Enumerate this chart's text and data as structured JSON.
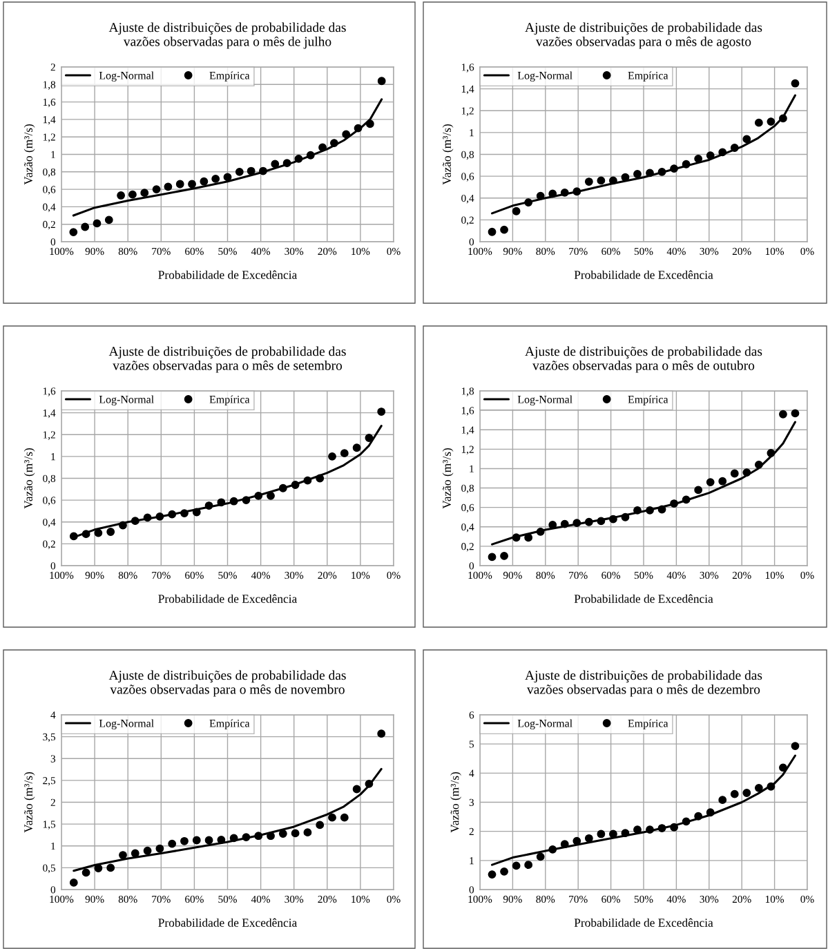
{
  "chart_data": [
    {
      "type": "scatter",
      "title": "Ajuste de distribuições de probabilidade das\nvazões observadas para o mês de julho",
      "xlabel": "Probabilidade de Excedência",
      "ylabel": "Vazão (m³/s)",
      "xlim": [
        100,
        0
      ],
      "xticks": [
        {
          "value": 100,
          "label": "100%"
        },
        {
          "value": 90,
          "label": "90%"
        },
        {
          "value": 80,
          "label": "80%"
        },
        {
          "value": 70,
          "label": "70%"
        },
        {
          "value": 60,
          "label": "60%"
        },
        {
          "value": 50,
          "label": "50%"
        },
        {
          "value": 40,
          "label": "40%"
        },
        {
          "value": 30,
          "label": "30%"
        },
        {
          "value": 20,
          "label": "20%"
        },
        {
          "value": 10,
          "label": "10%"
        },
        {
          "value": 0,
          "label": "0%"
        }
      ],
      "ylim": [
        0,
        2
      ],
      "yticks": [
        0,
        {
          "value": 0.2,
          "label": "0,2"
        },
        {
          "value": 0.4,
          "label": "0,4"
        },
        {
          "value": 0.6,
          "label": "0,6"
        },
        {
          "value": 0.8,
          "label": "0,8"
        },
        1,
        {
          "value": 1.2,
          "label": "1,2"
        },
        {
          "value": 1.4,
          "label": "1,4"
        },
        {
          "value": 1.6,
          "label": "1,6"
        },
        {
          "value": 1.8,
          "label": "1,8"
        },
        2
      ],
      "grid": true,
      "legend": "top left",
      "series": [
        {
          "name": "Log-Normal",
          "type": "line",
          "color": "#000000",
          "line_style": "solid",
          "x": [
            96.4,
            90,
            80,
            70,
            60,
            50,
            40,
            30,
            20,
            15,
            10,
            7.1,
            3.6
          ],
          "values": [
            0.3,
            0.39,
            0.47,
            0.54,
            0.61,
            0.69,
            0.79,
            0.91,
            1.06,
            1.16,
            1.3,
            1.4,
            1.63
          ]
        },
        {
          "name": "Empírica",
          "type": "scatter",
          "color": "#000000",
          "marker": "circle",
          "x": [
            96.4,
            92.9,
            89.3,
            85.7,
            82.1,
            78.6,
            75.0,
            71.4,
            67.9,
            64.3,
            60.7,
            57.1,
            53.6,
            50.0,
            46.4,
            42.9,
            39.3,
            35.7,
            32.1,
            28.6,
            25.0,
            21.4,
            17.9,
            14.3,
            10.7,
            7.1,
            3.6
          ],
          "values": [
            0.11,
            0.17,
            0.21,
            0.25,
            0.53,
            0.54,
            0.56,
            0.6,
            0.63,
            0.66,
            0.66,
            0.69,
            0.72,
            0.74,
            0.8,
            0.81,
            0.81,
            0.89,
            0.9,
            0.95,
            0.99,
            1.08,
            1.13,
            1.23,
            1.3,
            1.35,
            1.84
          ]
        }
      ]
    },
    {
      "type": "scatter",
      "title": "Ajuste de distribuições de probabilidade das\nvazões observadas para o mês de agosto",
      "xlabel": "Probabilidade de Excedência",
      "ylabel": "Vazão (m³/s)",
      "xlim": [
        100,
        0
      ],
      "xticks": [
        {
          "value": 100,
          "label": "100%"
        },
        {
          "value": 90,
          "label": "90%"
        },
        {
          "value": 80,
          "label": "80%"
        },
        {
          "value": 70,
          "label": "70%"
        },
        {
          "value": 60,
          "label": "60%"
        },
        {
          "value": 50,
          "label": "50%"
        },
        {
          "value": 40,
          "label": "40%"
        },
        {
          "value": 30,
          "label": "30%"
        },
        {
          "value": 20,
          "label": "20%"
        },
        {
          "value": 10,
          "label": "10%"
        },
        {
          "value": 0,
          "label": "0%"
        }
      ],
      "ylim": [
        0,
        1.6
      ],
      "yticks": [
        0,
        {
          "value": 0.2,
          "label": "0,2"
        },
        {
          "value": 0.4,
          "label": "0,4"
        },
        {
          "value": 0.6,
          "label": "0,6"
        },
        {
          "value": 0.8,
          "label": "0,8"
        },
        1,
        {
          "value": 1.2,
          "label": "1,2"
        },
        {
          "value": 1.4,
          "label": "1,4"
        },
        {
          "value": 1.6,
          "label": "1,6"
        }
      ],
      "grid": true,
      "legend": "top left",
      "series": [
        {
          "name": "Log-Normal",
          "type": "line",
          "color": "#000000",
          "line_style": "solid",
          "x": [
            96.3,
            90,
            80,
            70,
            60,
            50,
            40,
            30,
            20,
            15,
            10,
            7.4,
            3.7
          ],
          "values": [
            0.26,
            0.33,
            0.4,
            0.46,
            0.53,
            0.59,
            0.67,
            0.75,
            0.87,
            0.95,
            1.06,
            1.14,
            1.34
          ]
        },
        {
          "name": "Empírica",
          "type": "scatter",
          "color": "#000000",
          "marker": "circle",
          "x": [
            96.3,
            92.6,
            88.9,
            85.2,
            81.5,
            77.8,
            74.1,
            70.4,
            66.7,
            63.0,
            59.3,
            55.6,
            51.9,
            48.1,
            44.4,
            40.7,
            37.0,
            33.3,
            29.6,
            25.9,
            22.2,
            18.5,
            14.8,
            11.1,
            7.4,
            3.7
          ],
          "values": [
            0.09,
            0.11,
            0.28,
            0.36,
            0.42,
            0.44,
            0.45,
            0.46,
            0.55,
            0.56,
            0.56,
            0.59,
            0.62,
            0.63,
            0.64,
            0.67,
            0.71,
            0.76,
            0.79,
            0.82,
            0.86,
            0.94,
            1.09,
            1.1,
            1.13,
            1.45
          ]
        }
      ]
    },
    {
      "type": "scatter",
      "title": "Ajuste de distribuições de probabilidade das\nvazões observadas para o mês de setembro",
      "xlabel": "Probabilidade de Excedência",
      "ylabel": "Vazão (m³/s)",
      "xlim": [
        100,
        0
      ],
      "xticks": [
        {
          "value": 100,
          "label": "100%"
        },
        {
          "value": 90,
          "label": "90%"
        },
        {
          "value": 80,
          "label": "80%"
        },
        {
          "value": 70,
          "label": "70%"
        },
        {
          "value": 60,
          "label": "60%"
        },
        {
          "value": 50,
          "label": "50%"
        },
        {
          "value": 40,
          "label": "40%"
        },
        {
          "value": 30,
          "label": "30%"
        },
        {
          "value": 20,
          "label": "20%"
        },
        {
          "value": 10,
          "label": "10%"
        },
        {
          "value": 0,
          "label": "0%"
        }
      ],
      "ylim": [
        0,
        1.6
      ],
      "yticks": [
        0,
        {
          "value": 0.2,
          "label": "0,2"
        },
        {
          "value": 0.4,
          "label": "0,4"
        },
        {
          "value": 0.6,
          "label": "0,6"
        },
        {
          "value": 0.8,
          "label": "0,8"
        },
        1,
        {
          "value": 1.2,
          "label": "1,2"
        },
        {
          "value": 1.4,
          "label": "1,4"
        },
        {
          "value": 1.6,
          "label": "1,6"
        }
      ],
      "grid": true,
      "legend": "top left",
      "series": [
        {
          "name": "Log-Normal",
          "type": "line",
          "color": "#000000",
          "line_style": "solid",
          "x": [
            96.3,
            90,
            80,
            70,
            60,
            50,
            40,
            30,
            20,
            15,
            10,
            7.4,
            3.7
          ],
          "values": [
            0.26,
            0.33,
            0.4,
            0.45,
            0.51,
            0.57,
            0.65,
            0.74,
            0.85,
            0.92,
            1.02,
            1.1,
            1.28
          ]
        },
        {
          "name": "Empírica",
          "type": "scatter",
          "color": "#000000",
          "marker": "circle",
          "x": [
            96.3,
            92.6,
            88.9,
            85.2,
            81.5,
            77.8,
            74.1,
            70.4,
            66.7,
            63.0,
            59.3,
            55.6,
            51.9,
            48.1,
            44.4,
            40.7,
            37.0,
            33.3,
            29.6,
            25.9,
            22.2,
            18.5,
            14.8,
            11.1,
            7.4,
            3.7
          ],
          "values": [
            0.27,
            0.29,
            0.3,
            0.31,
            0.37,
            0.41,
            0.44,
            0.45,
            0.47,
            0.48,
            0.49,
            0.55,
            0.58,
            0.59,
            0.6,
            0.64,
            0.64,
            0.71,
            0.74,
            0.78,
            0.8,
            1.0,
            1.03,
            1.08,
            1.17,
            1.41
          ]
        }
      ]
    },
    {
      "type": "scatter",
      "title": "Ajuste de distribuições de probabilidade das\nvazões observadas para o mês de outubro",
      "xlabel": "Probabilidade de Excedência",
      "ylabel": "Vazão (m³/s)",
      "xlim": [
        100,
        0
      ],
      "xticks": [
        {
          "value": 100,
          "label": "100%"
        },
        {
          "value": 90,
          "label": "90%"
        },
        {
          "value": 80,
          "label": "80%"
        },
        {
          "value": 70,
          "label": "70%"
        },
        {
          "value": 60,
          "label": "60%"
        },
        {
          "value": 50,
          "label": "50%"
        },
        {
          "value": 40,
          "label": "40%"
        },
        {
          "value": 30,
          "label": "30%"
        },
        {
          "value": 20,
          "label": "20%"
        },
        {
          "value": 10,
          "label": "10%"
        },
        {
          "value": 0,
          "label": "0%"
        }
      ],
      "ylim": [
        0,
        1.8
      ],
      "yticks": [
        0,
        {
          "value": 0.2,
          "label": "0,2"
        },
        {
          "value": 0.4,
          "label": "0,4"
        },
        {
          "value": 0.6,
          "label": "0,6"
        },
        {
          "value": 0.8,
          "label": "0,8"
        },
        1,
        {
          "value": 1.2,
          "label": "1,2"
        },
        {
          "value": 1.4,
          "label": "1,4"
        },
        {
          "value": 1.6,
          "label": "1,6"
        },
        {
          "value": 1.8,
          "label": "1,8"
        }
      ],
      "grid": true,
      "legend": "top left",
      "series": [
        {
          "name": "Log-Normal",
          "type": "line",
          "color": "#000000",
          "line_style": "solid",
          "x": [
            96.3,
            90,
            80,
            70,
            60,
            50,
            40,
            30,
            20,
            15,
            10,
            7.4,
            3.7
          ],
          "values": [
            0.22,
            0.29,
            0.37,
            0.43,
            0.49,
            0.56,
            0.64,
            0.75,
            0.9,
            1.0,
            1.16,
            1.26,
            1.48
          ]
        },
        {
          "name": "Empírica",
          "type": "scatter",
          "color": "#000000",
          "marker": "circle",
          "x": [
            96.3,
            92.6,
            88.9,
            85.2,
            81.5,
            77.8,
            74.1,
            70.4,
            66.7,
            63.0,
            59.3,
            55.6,
            51.9,
            48.1,
            44.4,
            40.7,
            37.0,
            33.3,
            29.6,
            25.9,
            22.2,
            18.5,
            14.8,
            11.1,
            7.4,
            3.7
          ],
          "values": [
            0.09,
            0.1,
            0.29,
            0.29,
            0.35,
            0.42,
            0.43,
            0.44,
            0.45,
            0.46,
            0.48,
            0.5,
            0.57,
            0.57,
            0.58,
            0.64,
            0.68,
            0.78,
            0.86,
            0.87,
            0.95,
            0.96,
            1.04,
            1.16,
            1.56,
            1.57
          ]
        }
      ]
    },
    {
      "type": "scatter",
      "title": "Ajuste de distribuições de probabilidade das\nvazões observadas para o mês de novembro",
      "xlabel": "Probabilidade de Excedência",
      "ylabel": "Vazão (m³/s)",
      "xlim": [
        100,
        0
      ],
      "xticks": [
        {
          "value": 100,
          "label": "100%"
        },
        {
          "value": 90,
          "label": "90%"
        },
        {
          "value": 80,
          "label": "80%"
        },
        {
          "value": 70,
          "label": "70%"
        },
        {
          "value": 60,
          "label": "60%"
        },
        {
          "value": 50,
          "label": "50%"
        },
        {
          "value": 40,
          "label": "40%"
        },
        {
          "value": 30,
          "label": "30%"
        },
        {
          "value": 20,
          "label": "20%"
        },
        {
          "value": 10,
          "label": "10%"
        },
        {
          "value": 0,
          "label": "0%"
        }
      ],
      "ylim": [
        0,
        4
      ],
      "yticks": [
        0,
        {
          "value": 0.5,
          "label": "0,5"
        },
        1,
        {
          "value": 1.5,
          "label": "1,5"
        },
        2,
        {
          "value": 2.5,
          "label": "2,5"
        },
        3,
        {
          "value": 3.5,
          "label": "3,5"
        },
        4
      ],
      "grid": true,
      "legend": "top left",
      "series": [
        {
          "name": "Log-Normal",
          "type": "line",
          "color": "#000000",
          "line_style": "solid",
          "x": [
            96.3,
            90,
            80,
            70,
            60,
            50,
            40,
            30,
            20,
            15,
            10,
            7.4,
            3.7
          ],
          "values": [
            0.43,
            0.56,
            0.71,
            0.83,
            0.96,
            1.09,
            1.25,
            1.44,
            1.72,
            1.9,
            2.18,
            2.38,
            2.76
          ]
        },
        {
          "name": "Empírica",
          "type": "scatter",
          "color": "#000000",
          "marker": "circle",
          "x": [
            96.3,
            92.6,
            88.9,
            85.2,
            81.5,
            77.8,
            74.1,
            70.4,
            66.7,
            63.0,
            59.3,
            55.6,
            51.9,
            48.1,
            44.4,
            40.7,
            37.0,
            33.3,
            29.6,
            25.9,
            22.2,
            18.5,
            14.8,
            11.1,
            7.4,
            3.7
          ],
          "values": [
            0.16,
            0.39,
            0.49,
            0.5,
            0.79,
            0.83,
            0.89,
            0.94,
            1.05,
            1.11,
            1.13,
            1.13,
            1.14,
            1.18,
            1.2,
            1.23,
            1.23,
            1.28,
            1.29,
            1.31,
            1.48,
            1.65,
            1.65,
            2.3,
            2.42,
            3.57
          ]
        }
      ]
    },
    {
      "type": "scatter",
      "title": "Ajuste de distribuições de probabilidade das\nvazões observadas para o mês de dezembro",
      "xlabel": "Probabilidade de Excedência",
      "ylabel": "Vazão (m³/s)",
      "xlim": [
        100,
        0
      ],
      "xticks": [
        {
          "value": 100,
          "label": "100%"
        },
        {
          "value": 90,
          "label": "90%"
        },
        {
          "value": 80,
          "label": "80%"
        },
        {
          "value": 70,
          "label": "70%"
        },
        {
          "value": 60,
          "label": "60%"
        },
        {
          "value": 50,
          "label": "50%"
        },
        {
          "value": 40,
          "label": "40%"
        },
        {
          "value": 30,
          "label": "30%"
        },
        {
          "value": 20,
          "label": "20%"
        },
        {
          "value": 10,
          "label": "10%"
        },
        {
          "value": 0,
          "label": "0%"
        }
      ],
      "ylim": [
        0,
        6
      ],
      "yticks": [
        0,
        1,
        2,
        3,
        4,
        5,
        6
      ],
      "grid": true,
      "legend": "top left",
      "series": [
        {
          "name": "Log-Normal",
          "type": "line",
          "color": "#000000",
          "line_style": "solid",
          "x": [
            96.3,
            90,
            80,
            70,
            60,
            50,
            40,
            30,
            20,
            15,
            10,
            7.4,
            3.7
          ],
          "values": [
            0.85,
            1.1,
            1.33,
            1.55,
            1.76,
            1.97,
            2.22,
            2.55,
            3.0,
            3.3,
            3.65,
            3.95,
            4.6
          ]
        },
        {
          "name": "Empírica",
          "type": "scatter",
          "color": "#000000",
          "marker": "circle",
          "x": [
            96.3,
            92.6,
            88.9,
            85.2,
            81.5,
            77.8,
            74.1,
            70.4,
            66.7,
            63.0,
            59.3,
            55.6,
            51.9,
            48.1,
            44.4,
            40.7,
            37.0,
            33.3,
            29.6,
            25.9,
            22.2,
            18.5,
            14.8,
            11.1,
            7.4,
            3.7
          ],
          "values": [
            0.52,
            0.62,
            0.82,
            0.85,
            1.13,
            1.38,
            1.56,
            1.67,
            1.76,
            1.91,
            1.91,
            1.94,
            2.06,
            2.06,
            2.11,
            2.14,
            2.34,
            2.52,
            2.65,
            3.08,
            3.28,
            3.32,
            3.49,
            3.54,
            4.19,
            4.93
          ]
        }
      ]
    }
  ]
}
